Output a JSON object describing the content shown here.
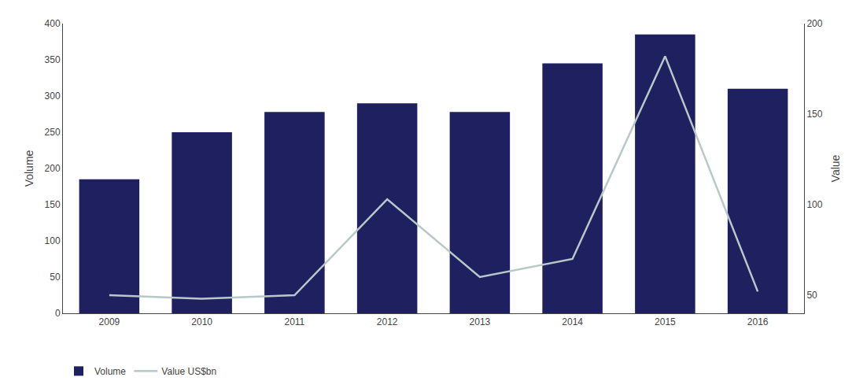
{
  "chart_data": {
    "type": "bar",
    "x": [
      2009,
      2010,
      2011,
      2012,
      2013,
      2014,
      2015,
      2016
    ],
    "xlim": [
      2008.5,
      2016.5
    ],
    "xticks": [
      2009,
      2010,
      2011,
      2012,
      2013,
      2014,
      2015,
      2016
    ],
    "ylabel": "Volume",
    "y2label": "Value",
    "ylim": [
      0,
      400
    ],
    "yticks": [
      0,
      50,
      100,
      150,
      200,
      250,
      300,
      350,
      400
    ],
    "y2lim": [
      40,
      200
    ],
    "y2ticks": [
      50,
      100,
      150,
      200
    ],
    "grid": false,
    "legend": "bottom",
    "series": [
      {
        "name": "Volume",
        "type": "bar",
        "color": "#1e2060",
        "values": [
          185,
          250,
          278,
          290,
          278,
          345,
          385,
          310
        ]
      },
      {
        "name": "Value US$bn",
        "type": "line",
        "color": "#b8c8c8",
        "axis": "y2",
        "values": [
          50,
          48,
          50,
          103,
          60,
          70,
          182,
          52
        ]
      }
    ]
  }
}
